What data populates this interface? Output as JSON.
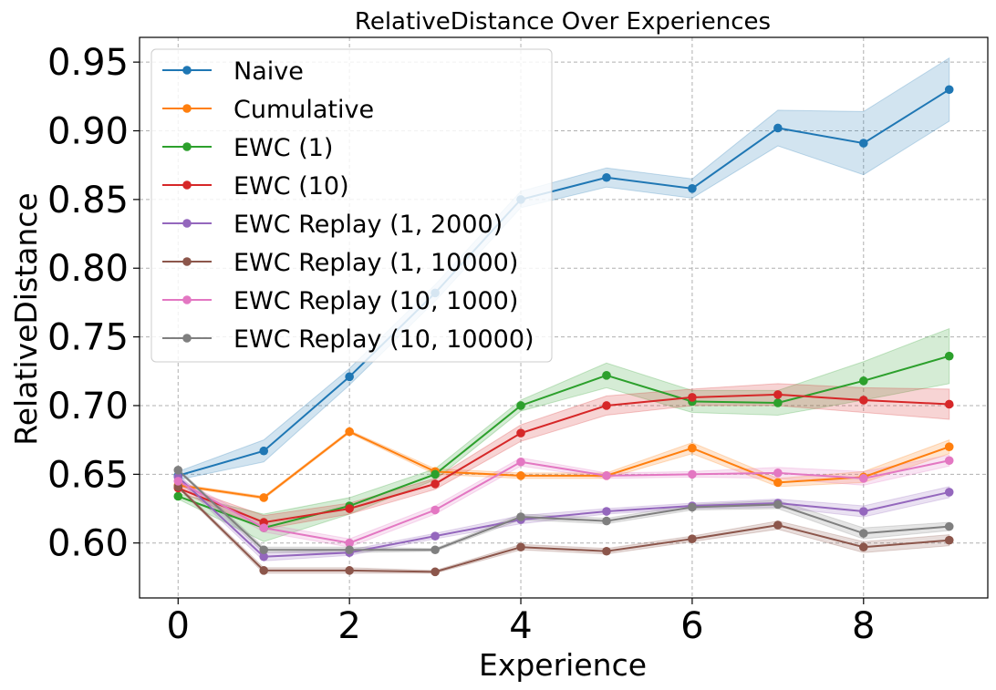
{
  "chart_data": {
    "type": "line",
    "title": "RelativeDistance Over Experiences",
    "xlabel": "Experience",
    "ylabel": "RelativeDistance",
    "xlim": [
      -0.45,
      9.45
    ],
    "ylim": [
      0.56,
      0.968
    ],
    "xticks": [
      0,
      2,
      4,
      6,
      8
    ],
    "xtick_labels": [
      "0",
      "2",
      "4",
      "6",
      "8"
    ],
    "yticks": [
      0.6,
      0.65,
      0.7,
      0.75,
      0.8,
      0.85,
      0.9,
      0.95
    ],
    "ytick_labels": [
      "0.60",
      "0.65",
      "0.70",
      "0.75",
      "0.80",
      "0.85",
      "0.90",
      "0.95"
    ],
    "grid": true,
    "legend_position": "top-left",
    "x": [
      0,
      1,
      2,
      3,
      4,
      5,
      6,
      7,
      8,
      9
    ],
    "series": [
      {
        "name": "Naive",
        "color": "#1f77b4",
        "values": [
          0.649,
          0.667,
          0.721,
          0.782,
          0.85,
          0.866,
          0.858,
          0.902,
          0.891,
          0.93
        ],
        "band": [
          0.003,
          0.008,
          0.006,
          0.006,
          0.006,
          0.007,
          0.007,
          0.013,
          0.023,
          0.023
        ]
      },
      {
        "name": "Cumulative",
        "color": "#ff7f0e",
        "values": [
          0.642,
          0.633,
          0.681,
          0.652,
          0.649,
          0.649,
          0.669,
          0.644,
          0.648,
          0.67
        ],
        "band": [
          0.001,
          0.001,
          0.001,
          0.002,
          0.002,
          0.002,
          0.004,
          0.003,
          0.004,
          0.005
        ]
      },
      {
        "name": "EWC (1)",
        "color": "#2ca02c",
        "values": [
          0.634,
          0.611,
          0.627,
          0.65,
          0.7,
          0.722,
          0.703,
          0.702,
          0.718,
          0.736
        ],
        "band": [
          0.002,
          0.01,
          0.006,
          0.004,
          0.004,
          0.009,
          0.008,
          0.009,
          0.014,
          0.02
        ]
      },
      {
        "name": "EWC (10)",
        "color": "#d62728",
        "values": [
          0.64,
          0.615,
          0.625,
          0.643,
          0.68,
          0.7,
          0.706,
          0.708,
          0.704,
          0.701
        ],
        "band": [
          0.002,
          0.005,
          0.004,
          0.004,
          0.006,
          0.007,
          0.006,
          0.008,
          0.009,
          0.011
        ]
      },
      {
        "name": "EWC Replay (1, 2000)",
        "color": "#9467bd",
        "values": [
          0.648,
          0.59,
          0.593,
          0.605,
          0.617,
          0.623,
          0.627,
          0.629,
          0.623,
          0.637
        ],
        "band": [
          0.002,
          0.003,
          0.002,
          0.002,
          0.003,
          0.002,
          0.002,
          0.003,
          0.004,
          0.004
        ]
      },
      {
        "name": "EWC Replay (1, 10000)",
        "color": "#8c564b",
        "values": [
          0.641,
          0.58,
          0.58,
          0.579,
          0.597,
          0.594,
          0.603,
          0.613,
          0.597,
          0.602
        ],
        "band": [
          0.001,
          0.002,
          0.002,
          0.001,
          0.002,
          0.002,
          0.002,
          0.003,
          0.004,
          0.004
        ]
      },
      {
        "name": "EWC Replay (10, 1000)",
        "color": "#e377c2",
        "values": [
          0.645,
          0.611,
          0.6,
          0.624,
          0.659,
          0.649,
          0.65,
          0.651,
          0.647,
          0.66
        ],
        "band": [
          0.002,
          0.003,
          0.003,
          0.003,
          0.003,
          0.002,
          0.002,
          0.004,
          0.005,
          0.004
        ]
      },
      {
        "name": "EWC Replay (10, 10000)",
        "color": "#7f7f7f",
        "values": [
          0.653,
          0.595,
          0.595,
          0.595,
          0.619,
          0.616,
          0.626,
          0.628,
          0.607,
          0.612
        ],
        "band": [
          0.001,
          0.002,
          0.002,
          0.001,
          0.002,
          0.002,
          0.002,
          0.003,
          0.004,
          0.003
        ]
      }
    ]
  }
}
